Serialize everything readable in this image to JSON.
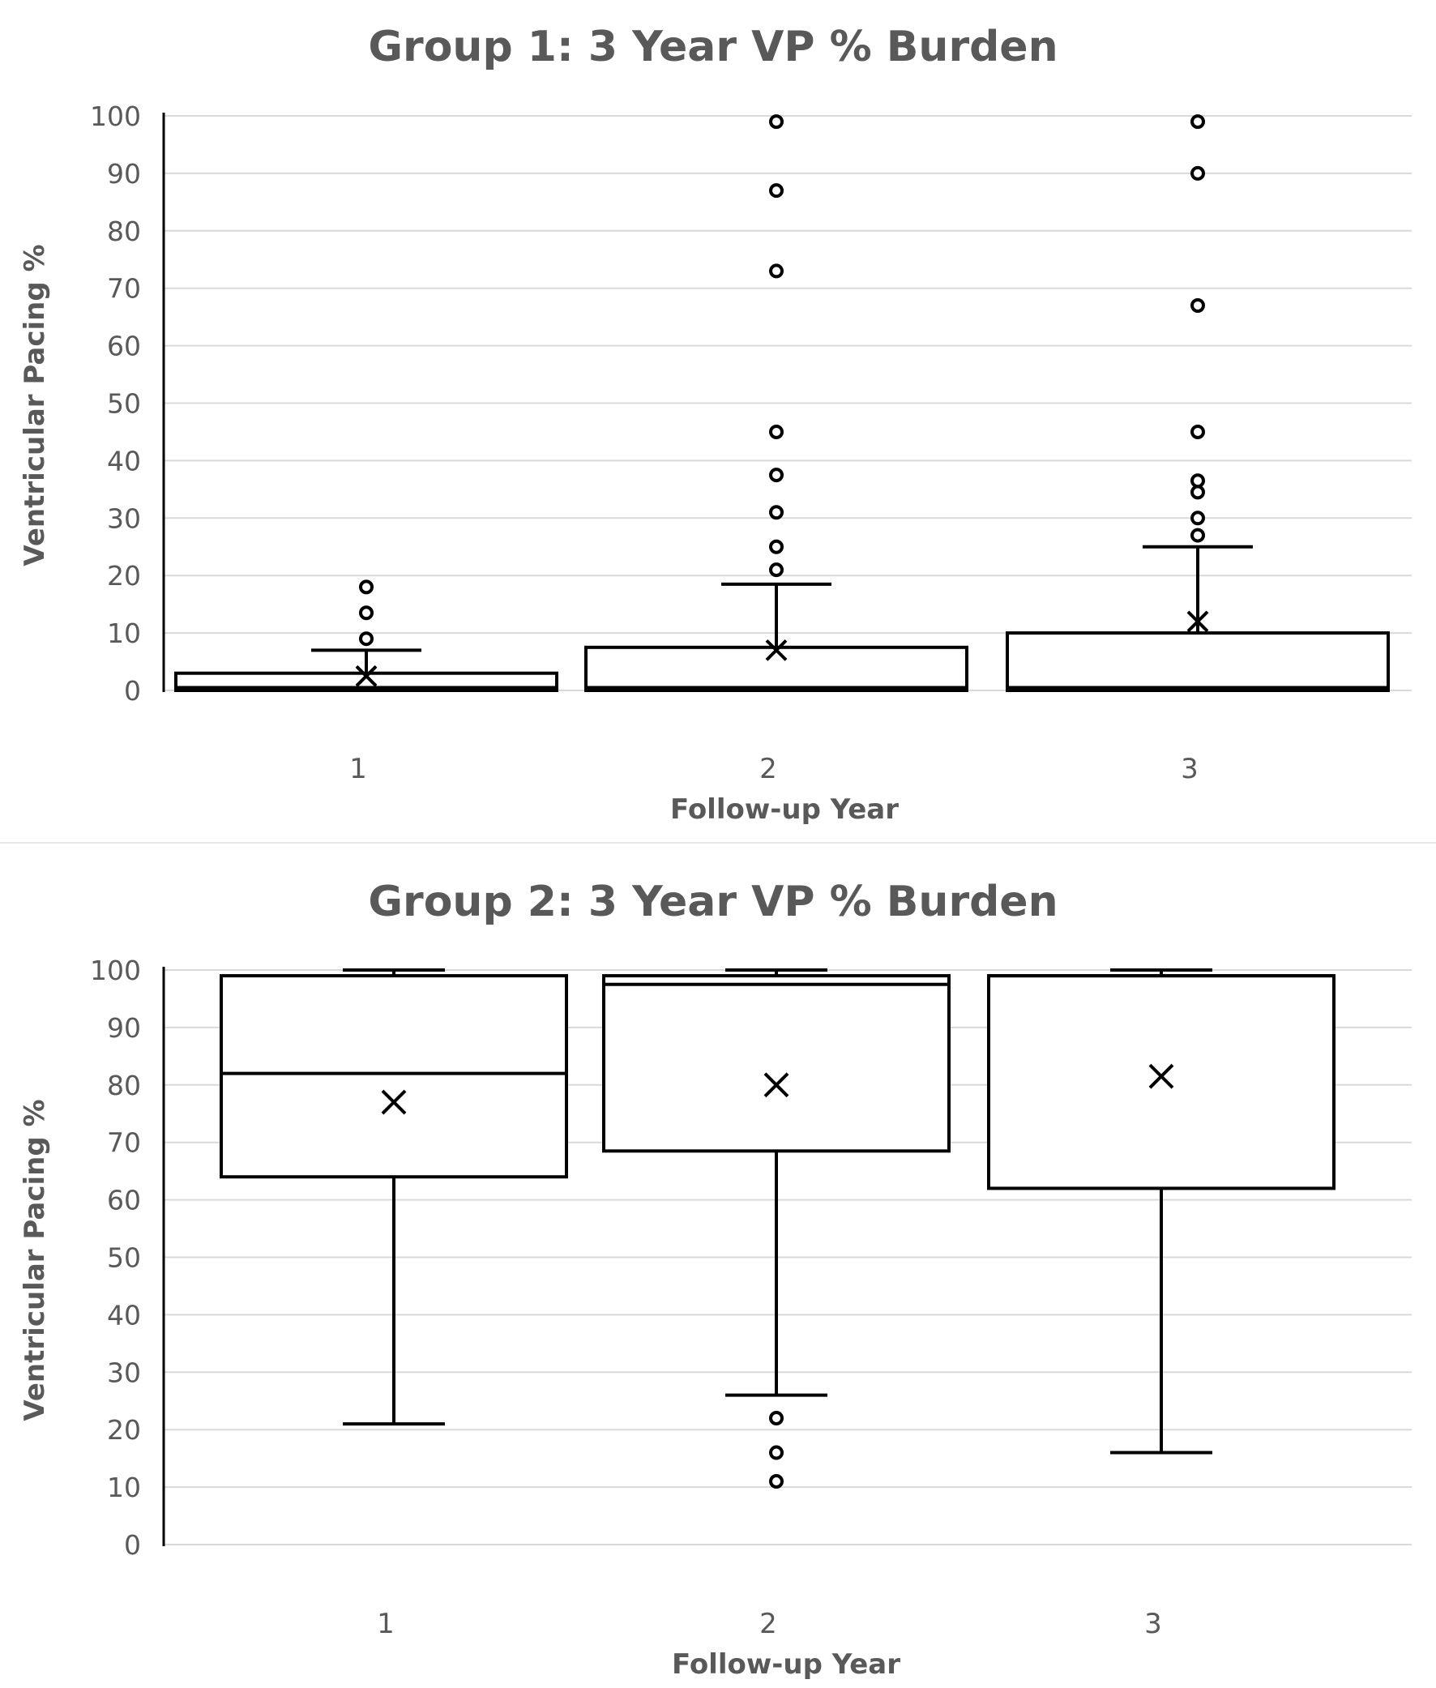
{
  "chart_data": [
    {
      "type": "box",
      "title": "Group 1: 3 Year VP % Burden",
      "xlabel": "Follow-up Year",
      "ylabel": "Ventricular Pacing %",
      "ylim": [
        0,
        100
      ],
      "yticks": [
        0,
        10,
        20,
        30,
        40,
        50,
        60,
        70,
        80,
        90,
        100
      ],
      "grid": true,
      "categories": [
        "1",
        "2",
        "3"
      ],
      "boxes": [
        {
          "min": 0,
          "q1": 0,
          "median": 0.5,
          "q3": 3,
          "max": 7,
          "mean": 2.5,
          "outliers": [
            9,
            13.5,
            18
          ]
        },
        {
          "min": 0,
          "q1": 0,
          "median": 0.5,
          "q3": 7.5,
          "max": 18.5,
          "mean": 7,
          "outliers": [
            21,
            25,
            31,
            37.5,
            45,
            73,
            87,
            99
          ]
        },
        {
          "min": 0,
          "q1": 0,
          "median": 0.5,
          "q3": 10,
          "max": 25,
          "mean": 12,
          "outliers": [
            27,
            30,
            34.5,
            36.5,
            45,
            67,
            90,
            99
          ]
        }
      ]
    },
    {
      "type": "box",
      "title": "Group 2: 3 Year VP % Burden",
      "xlabel": "Follow-up Year",
      "ylabel": "Ventricular Pacing %",
      "ylim": [
        0,
        100
      ],
      "yticks": [
        0,
        10,
        20,
        30,
        40,
        50,
        60,
        70,
        80,
        90,
        100
      ],
      "grid": true,
      "categories": [
        "1",
        "2",
        "3"
      ],
      "boxes": [
        {
          "min": 21,
          "q1": 64,
          "median": 82,
          "q3": 99,
          "max": 100,
          "mean": 77,
          "outliers": []
        },
        {
          "min": 26,
          "q1": 68.5,
          "median": 97.5,
          "q3": 99,
          "max": 100,
          "mean": 80,
          "outliers": [
            11,
            16,
            22
          ]
        },
        {
          "min": 16,
          "q1": 62,
          "median": 99,
          "q3": 99,
          "max": 100,
          "mean": 81.5,
          "outliers": []
        }
      ]
    }
  ]
}
